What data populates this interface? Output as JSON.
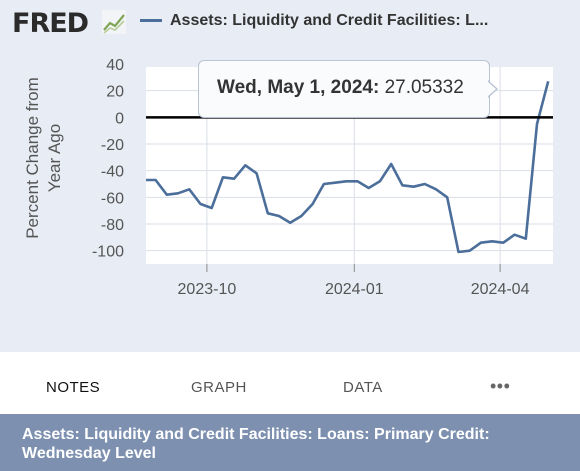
{
  "header": {
    "logo_text": "FRED",
    "logo_icon": "chart-line-icon",
    "series_label": "Assets: Liquidity and Credit Facilities: L..."
  },
  "tooltip": {
    "date": "Wed, May 1, 2024:",
    "value": "27.05332"
  },
  "tabs": [
    {
      "label": "NOTES",
      "active": true
    },
    {
      "label": "GRAPH",
      "active": false
    },
    {
      "label": "DATA",
      "active": false
    },
    {
      "label": "•••",
      "active": false
    }
  ],
  "footer": {
    "title": "Assets: Liquidity and Credit Facilities: Loans: Primary Credit: Wednesday Level"
  },
  "colors": {
    "series": "#4b6e9a",
    "zero_line": "#000000",
    "grid": "#d9dee7",
    "plot_bg": "#ffffff"
  },
  "chart_data": {
    "type": "line",
    "ylabel": "Percent Change from Year Ago",
    "ylim": [
      -110,
      40
    ],
    "yticks": [
      40,
      20,
      0,
      -20,
      -40,
      -60,
      -80,
      -100
    ],
    "xlim": [
      "2023-08-24",
      "2024-05-04"
    ],
    "xticks": [
      {
        "date": "2023-10-01",
        "label": "2023-10"
      },
      {
        "date": "2024-01-01",
        "label": "2024-01"
      },
      {
        "date": "2024-04-01",
        "label": "2024-04"
      }
    ],
    "grid": true,
    "zero_line": true,
    "series": [
      {
        "points": [
          [
            "2023-08-24",
            -47
          ],
          [
            "2023-08-30",
            -47
          ],
          [
            "2023-09-06",
            -58
          ],
          [
            "2023-09-13",
            -57
          ],
          [
            "2023-09-20",
            -54
          ],
          [
            "2023-09-27",
            -65
          ],
          [
            "2023-10-04",
            -68
          ],
          [
            "2023-10-11",
            -45
          ],
          [
            "2023-10-18",
            -46
          ],
          [
            "2023-10-25",
            -36
          ],
          [
            "2023-11-01",
            -42
          ],
          [
            "2023-11-08",
            -72
          ],
          [
            "2023-11-15",
            -74
          ],
          [
            "2023-11-22",
            -79
          ],
          [
            "2023-11-29",
            -74
          ],
          [
            "2023-12-06",
            -65
          ],
          [
            "2023-12-13",
            -50
          ],
          [
            "2023-12-20",
            -49
          ],
          [
            "2023-12-27",
            -48
          ],
          [
            "2024-01-03",
            -48
          ],
          [
            "2024-01-10",
            -53
          ],
          [
            "2024-01-17",
            -48
          ],
          [
            "2024-01-24",
            -35
          ],
          [
            "2024-01-31",
            -51
          ],
          [
            "2024-02-07",
            -52
          ],
          [
            "2024-02-14",
            -50
          ],
          [
            "2024-02-21",
            -54
          ],
          [
            "2024-02-28",
            -60
          ],
          [
            "2024-03-06",
            -101
          ],
          [
            "2024-03-13",
            -100
          ],
          [
            "2024-03-20",
            -94
          ],
          [
            "2024-03-27",
            -93
          ],
          [
            "2024-04-03",
            -94
          ],
          [
            "2024-04-10",
            -88
          ],
          [
            "2024-04-17",
            -91
          ],
          [
            "2024-04-24",
            -5
          ],
          [
            "2024-05-01",
            27.05332
          ]
        ]
      }
    ]
  }
}
